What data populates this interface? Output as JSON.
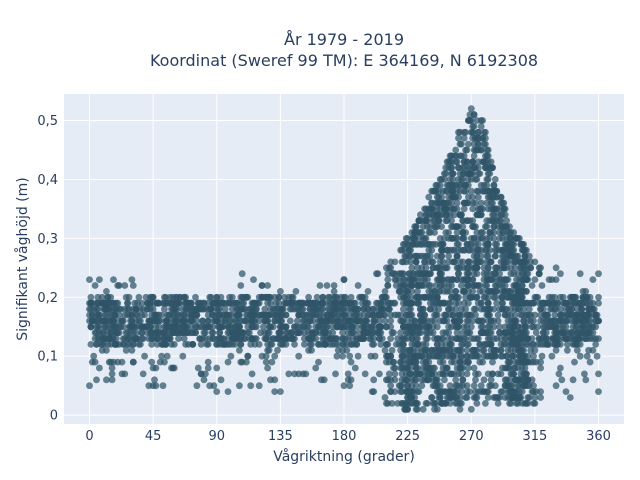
{
  "chart_data": {
    "type": "scatter",
    "title_line1": "År 1979 - 2019",
    "title_line2": "Koordinat (Sweref 99 TM): E 364169, N 6192308",
    "xlabel": "Vågriktning (grader)",
    "ylabel": "Signifikant våghöjd (m)",
    "xlim": [
      -18,
      378
    ],
    "ylim": [
      -0.015,
      0.545
    ],
    "x_ticks": [
      {
        "value": 0,
        "label": "0"
      },
      {
        "value": 45,
        "label": "45"
      },
      {
        "value": 90,
        "label": "90"
      },
      {
        "value": 135,
        "label": "135"
      },
      {
        "value": 180,
        "label": "180"
      },
      {
        "value": 225,
        "label": "225"
      },
      {
        "value": 270,
        "label": "270"
      },
      {
        "value": 315,
        "label": "315"
      },
      {
        "value": 360,
        "label": "360"
      }
    ],
    "y_ticks": [
      {
        "value": 0,
        "label": "0"
      },
      {
        "value": 0.1,
        "label": "0,1"
      },
      {
        "value": 0.2,
        "label": "0,2"
      },
      {
        "value": 0.3,
        "label": "0,3"
      },
      {
        "value": 0.4,
        "label": "0,4"
      },
      {
        "value": 0.5,
        "label": "0,5"
      }
    ],
    "grid": true,
    "marker_color": "#2f5468",
    "plot_bgcolor": "#e5ecf6",
    "upper_envelope": [
      {
        "x": 0,
        "y": 0.23
      },
      {
        "x": 30,
        "y": 0.23
      },
      {
        "x": 45,
        "y": 0.2
      },
      {
        "x": 90,
        "y": 0.2
      },
      {
        "x": 108,
        "y": 0.24
      },
      {
        "x": 135,
        "y": 0.21
      },
      {
        "x": 180,
        "y": 0.23
      },
      {
        "x": 210,
        "y": 0.25
      },
      {
        "x": 225,
        "y": 0.3
      },
      {
        "x": 240,
        "y": 0.37
      },
      {
        "x": 255,
        "y": 0.44
      },
      {
        "x": 262,
        "y": 0.48
      },
      {
        "x": 270,
        "y": 0.52
      },
      {
        "x": 278,
        "y": 0.5
      },
      {
        "x": 285,
        "y": 0.42
      },
      {
        "x": 300,
        "y": 0.31
      },
      {
        "x": 315,
        "y": 0.26
      },
      {
        "x": 330,
        "y": 0.25
      },
      {
        "x": 360,
        "y": 0.24
      }
    ],
    "lower_envelope": [
      {
        "x": 0,
        "y": 0.05
      },
      {
        "x": 45,
        "y": 0.05
      },
      {
        "x": 90,
        "y": 0.04
      },
      {
        "x": 135,
        "y": 0.04
      },
      {
        "x": 180,
        "y": 0.05
      },
      {
        "x": 200,
        "y": 0.04
      },
      {
        "x": 210,
        "y": 0.02
      },
      {
        "x": 225,
        "y": 0.01
      },
      {
        "x": 270,
        "y": 0.01
      },
      {
        "x": 315,
        "y": 0.02
      },
      {
        "x": 340,
        "y": 0.03
      },
      {
        "x": 360,
        "y": 0.04
      }
    ]
  }
}
